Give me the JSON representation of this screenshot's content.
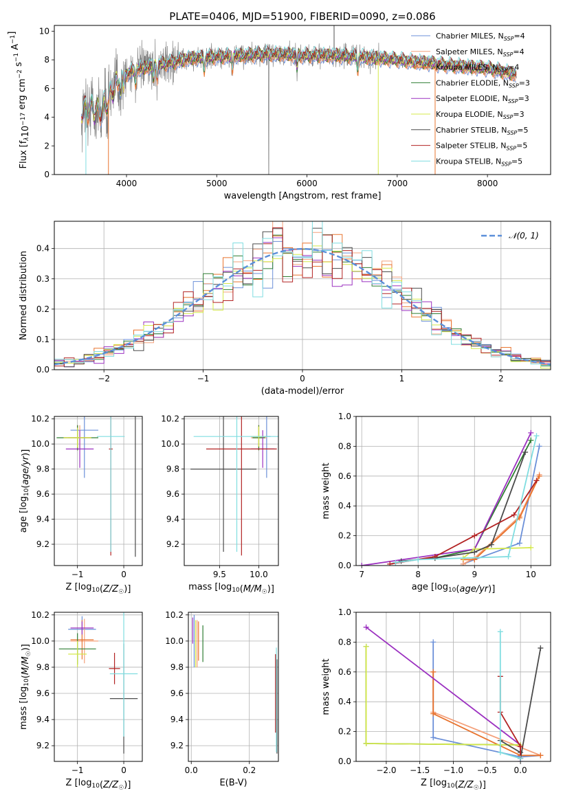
{
  "figure": {
    "title": "PLATE=0406, MJD=51900, FIBERID=0090, z=0.086"
  },
  "palette": {
    "Chabrier MILES": "#6a8fd8",
    "Salpeter MILES": "#f4a07a",
    "Kroupa MILES": "#e8732e",
    "Chabrier ELODIE": "#2e7d32",
    "Salpeter ELODIE": "#9b30c0",
    "Kroupa ELODIE": "#d4e84a",
    "Chabrier STELIB": "#4a4a4a",
    "Salpeter STELIB": "#b22222",
    "Kroupa STELIB": "#7fdde0",
    "data": "#808080",
    "normal_curve": "#5b8fd9"
  },
  "chart_data": [
    {
      "id": "spectrum",
      "type": "line",
      "title": "",
      "xlabel": "wavelength [Angstrom, rest frame]",
      "ylabel": "Flux [f_λ10^-17 erg cm^-2 s^-1 A^-1]",
      "xlim": [
        3200,
        8700
      ],
      "ylim": [
        0,
        10.4
      ],
      "xticks": [
        4000,
        5000,
        6000,
        7000,
        8000
      ],
      "yticks": [
        0,
        2,
        4,
        6,
        8,
        10
      ],
      "grid": false,
      "legend_position": "top-right",
      "legend": [
        {
          "name": "Chabrier MILES",
          "label": "Chabrier MILES, N",
          "sub": "SSP",
          "tail": "=4"
        },
        {
          "name": "Salpeter MILES",
          "label": "Salpeter MILES, N",
          "sub": "SSP",
          "tail": "=4"
        },
        {
          "name": "Kroupa MILES",
          "label": "Kroupa MILES, N",
          "sub": "SSP",
          "tail": "=4"
        },
        {
          "name": "Chabrier ELODIE",
          "label": "Chabrier ELODIE, N",
          "sub": "SSP",
          "tail": "=3"
        },
        {
          "name": "Salpeter ELODIE",
          "label": "Salpeter ELODIE, N",
          "sub": "SSP",
          "tail": "=3"
        },
        {
          "name": "Kroupa ELODIE",
          "label": "Kroupa ELODIE, N",
          "sub": "SSP",
          "tail": "=3"
        },
        {
          "name": "Chabrier STELIB",
          "label": "Chabrier STELIB, N",
          "sub": "SSP",
          "tail": "=5"
        },
        {
          "name": "Salpeter STELIB",
          "label": "Salpeter STELIB, N",
          "sub": "SSP",
          "tail": "=5"
        },
        {
          "name": "Kroupa STELIB",
          "label": "Kroupa STELIB, N",
          "sub": "SSP",
          "tail": "=5"
        }
      ],
      "continuum": {
        "x": [
          3500,
          3600,
          3700,
          3800,
          3850,
          3950,
          4000,
          4100,
          4300,
          4500,
          4700,
          5000,
          5300,
          5600,
          6000,
          6300,
          6600,
          7000,
          7300,
          7600,
          8000,
          8300
        ],
        "y": [
          4.4,
          4.6,
          4.3,
          5.2,
          5.9,
          6.7,
          7.0,
          7.3,
          7.6,
          7.8,
          8.1,
          8.2,
          8.3,
          8.4,
          8.3,
          8.3,
          8.2,
          8.0,
          7.8,
          7.6,
          7.4,
          7.0
        ]
      }
    },
    {
      "id": "residuals",
      "type": "step",
      "title": "",
      "xlabel": "(data-model)/error",
      "ylabel": "Normed distribution",
      "xlim": [
        -2.5,
        2.5
      ],
      "ylim": [
        0,
        0.49
      ],
      "xticks": [
        -2,
        -1,
        0,
        1,
        2
      ],
      "yticks": [
        0.0,
        0.1,
        0.2,
        0.3,
        0.4
      ],
      "grid": true,
      "legend_position": "top-right",
      "legend": [
        {
          "name": "normal",
          "label": "𝒩(0, 1)"
        }
      ],
      "bin_width": 0.1,
      "normal": {
        "mu": 0,
        "sigma": 1
      }
    },
    {
      "id": "age-vs-Z",
      "type": "errorbar",
      "xlabel": "Z [log10(Z/Z☉)]",
      "ylabel": "age  [log10(age/yr)]",
      "xlim": [
        -1.5,
        0.4
      ],
      "ylim": [
        9.03,
        10.22
      ],
      "xticks": [
        -1,
        0
      ],
      "yticks": [
        9.2,
        9.4,
        9.6,
        9.8,
        10.0,
        10.2
      ],
      "grid": true,
      "points": [
        {
          "s": "Chabrier MILES",
          "x": -0.85,
          "xe": 0.3,
          "y": 10.11,
          "ye": 0.38
        },
        {
          "s": "Salpeter MILES",
          "x": -0.95,
          "xe": 0.25,
          "y": 10.05,
          "ye": 0.1
        },
        {
          "s": "Kroupa MILES",
          "x": -1.0,
          "xe": 0.3,
          "y": 10.05,
          "ye": 0.1
        },
        {
          "s": "Chabrier ELODIE",
          "x": -1.0,
          "xe": 0.45,
          "y": 10.05,
          "ye": 0.1
        },
        {
          "s": "Salpeter ELODIE",
          "x": -0.95,
          "xe": 0.3,
          "y": 9.96,
          "ye": 0.15
        },
        {
          "s": "Kroupa ELODIE",
          "x": -1.0,
          "xe": 0.3,
          "y": 10.05,
          "ye": 0.08
        },
        {
          "s": "Chabrier STELIB",
          "x": 0.25,
          "xe": 0.0,
          "y": 9.8,
          "ye": 0.7
        },
        {
          "s": "Salpeter STELIB",
          "x": -0.28,
          "xe": 0.04,
          "y": 9.96,
          "ye": 0.85
        },
        {
          "s": "Kroupa STELIB",
          "x": -0.28,
          "xe": 0.3,
          "y": 10.06,
          "ye": 0.92
        }
      ]
    },
    {
      "id": "age-vs-mass",
      "type": "errorbar",
      "xlabel": "mass [log10(M/M☉)]",
      "ylabel": "",
      "xlim": [
        9.05,
        10.25
      ],
      "ylim": [
        9.03,
        10.22
      ],
      "xticks": [
        9.5,
        10.0
      ],
      "yticks": [
        9.2,
        9.4,
        9.6,
        9.8,
        10.0,
        10.2
      ],
      "grid": true,
      "points": [
        {
          "s": "Chabrier MILES",
          "x": 10.1,
          "xe": 0.05,
          "y": 10.06,
          "ye": 0.33
        },
        {
          "s": "Salpeter MILES",
          "x": 10.0,
          "xe": 0.1,
          "y": 10.05,
          "ye": 0.1
        },
        {
          "s": "Kroupa MILES",
          "x": 10.0,
          "xe": 0.08,
          "y": 10.05,
          "ye": 0.1
        },
        {
          "s": "Chabrier ELODIE",
          "x": 10.0,
          "xe": 0.08,
          "y": 10.05,
          "ye": 0.1
        },
        {
          "s": "Salpeter ELODIE",
          "x": 10.05,
          "xe": 0.15,
          "y": 9.96,
          "ye": 0.15
        },
        {
          "s": "Kroupa ELODIE",
          "x": 10.0,
          "xe": 0.1,
          "y": 10.06,
          "ye": 0.08
        },
        {
          "s": "Chabrier STELIB",
          "x": 9.55,
          "xe": 0.42,
          "y": 9.8,
          "ye": 0.66
        },
        {
          "s": "Salpeter STELIB",
          "x": 9.78,
          "xe": 0.45,
          "y": 9.96,
          "ye": 0.85
        },
        {
          "s": "Kroupa STELIB",
          "x": 9.72,
          "xe": 0.55,
          "y": 10.06,
          "ye": 0.92
        }
      ]
    },
    {
      "id": "massweight-vs-age",
      "type": "line",
      "xlabel": "age  [log10(age/yr)]",
      "ylabel": "mass weight",
      "xlim": [
        6.9,
        10.35
      ],
      "ylim": [
        0,
        1.0
      ],
      "xticks": [
        7,
        8,
        9,
        10
      ],
      "yticks": [
        0.0,
        0.2,
        0.4,
        0.6,
        0.8,
        1.0
      ],
      "grid": true,
      "series": [
        {
          "name": "Chabrier MILES",
          "x": [
            8.8,
            9.0,
            9.8,
            10.15
          ],
          "y": [
            0.01,
            0.04,
            0.15,
            0.8
          ]
        },
        {
          "name": "Salpeter MILES",
          "x": [
            8.8,
            9.0,
            9.8,
            10.15
          ],
          "y": [
            0.01,
            0.05,
            0.33,
            0.61
          ]
        },
        {
          "name": "Kroupa MILES",
          "x": [
            8.8,
            9.0,
            9.8,
            10.15
          ],
          "y": [
            0.04,
            0.04,
            0.32,
            0.6
          ]
        },
        {
          "name": "Chabrier ELODIE",
          "x": [
            8.3,
            9.0,
            10.0
          ],
          "y": [
            0.05,
            0.11,
            0.84
          ]
        },
        {
          "name": "Salpeter ELODIE",
          "x": [
            7.0,
            9.0,
            10.0
          ],
          "y": [
            0.0,
            0.11,
            0.89
          ]
        },
        {
          "name": "Kroupa ELODIE",
          "x": [
            8.8,
            9.0,
            10.0
          ],
          "y": [
            0.05,
            0.11,
            0.12
          ]
        },
        {
          "name": "Chabrier STELIB",
          "x": [
            7.7,
            8.3,
            9.0,
            9.3,
            9.9
          ],
          "y": [
            0.03,
            0.05,
            0.09,
            0.14,
            0.76
          ]
        },
        {
          "name": "Salpeter STELIB",
          "x": [
            7.5,
            8.3,
            9.0,
            9.7,
            10.1
          ],
          "y": [
            0.01,
            0.06,
            0.2,
            0.34,
            0.57
          ]
        },
        {
          "name": "Kroupa STELIB",
          "x": [
            7.6,
            8.0,
            9.6,
            10.1
          ],
          "y": [
            0.02,
            0.04,
            0.06,
            0.87
          ]
        }
      ]
    },
    {
      "id": "mass-vs-Z",
      "type": "errorbar",
      "xlabel": "Z [log10(Z/Z☉)]",
      "ylabel": "mass [log10(M/M☉)]",
      "xlim": [
        -1.5,
        0.4
      ],
      "ylim": [
        9.08,
        10.22
      ],
      "xticks": [
        -1,
        0
      ],
      "yticks": [
        9.2,
        9.4,
        9.6,
        9.8,
        10.0,
        10.2
      ],
      "grid": true,
      "points": [
        {
          "s": "Chabrier MILES",
          "x": -0.9,
          "xe": 0.3,
          "y": 10.09,
          "ye": 0.1
        },
        {
          "s": "Salpeter MILES",
          "x": -0.85,
          "xe": 0.3,
          "y": 10.0,
          "ye": 0.17
        },
        {
          "s": "Kroupa MILES",
          "x": -0.9,
          "xe": 0.25,
          "y": 10.01,
          "ye": 0.15
        },
        {
          "s": "Chabrier ELODIE",
          "x": -1.0,
          "xe": 0.4,
          "y": 9.94,
          "ye": 0.12
        },
        {
          "s": "Salpeter ELODIE",
          "x": -0.9,
          "xe": 0.25,
          "y": 10.1,
          "ye": 0.05
        },
        {
          "s": "Kroupa ELODIE",
          "x": -1.0,
          "xe": 0.2,
          "y": 9.9,
          "ye": 0.1
        },
        {
          "s": "Chabrier STELIB",
          "x": 0.0,
          "xe": 0.3,
          "y": 9.56,
          "ye": 0.42
        },
        {
          "s": "Salpeter STELIB",
          "x": -0.2,
          "xe": 0.12,
          "y": 9.79,
          "ye": 0.12
        },
        {
          "s": "Kroupa STELIB",
          "x": 0.0,
          "xe": 0.3,
          "y": 9.75,
          "ye": 0.48
        }
      ]
    },
    {
      "id": "mass-vs-EBV",
      "type": "errorbar",
      "xlabel": "E(B-V)",
      "ylabel": "",
      "xlim": [
        -0.01,
        0.3
      ],
      "ylim": [
        9.08,
        10.22
      ],
      "xticks": [
        0.0,
        0.2
      ],
      "yticks": [
        9.2,
        9.4,
        9.6,
        9.8,
        10.0,
        10.2
      ],
      "grid": true,
      "points": [
        {
          "s": "Chabrier MILES",
          "x": 0.01,
          "xe": 0.0,
          "y": 10.0,
          "ye": 0.2
        },
        {
          "s": "Salpeter MILES",
          "x": 0.02,
          "xe": 0.0,
          "y": 9.98,
          "ye": 0.18
        },
        {
          "s": "Kroupa MILES",
          "x": 0.025,
          "xe": 0.0,
          "y": 10.0,
          "ye": 0.15
        },
        {
          "s": "Chabrier ELODIE",
          "x": 0.04,
          "xe": 0.0,
          "y": 9.98,
          "ye": 0.14
        },
        {
          "s": "Salpeter ELODIE",
          "x": 0.005,
          "xe": 0.0,
          "y": 10.08,
          "ye": 0.1
        },
        {
          "s": "Kroupa ELODIE",
          "x": 0.015,
          "xe": 0.0,
          "y": 9.98,
          "ye": 0.18
        },
        {
          "s": "Chabrier STELIB",
          "x": 0.295,
          "xe": 0.0,
          "y": 9.5,
          "ye": 0.36
        },
        {
          "s": "Salpeter STELIB",
          "x": 0.29,
          "xe": 0.0,
          "y": 9.6,
          "ye": 0.3
        },
        {
          "s": "Kroupa STELIB",
          "x": 0.293,
          "xe": 0.0,
          "y": 9.55,
          "ye": 0.4
        }
      ]
    },
    {
      "id": "massweight-vs-Z",
      "type": "line",
      "xlabel": "Z [log10(Z/Z☉)]",
      "ylabel": "mass weight",
      "xlim": [
        -2.45,
        0.45
      ],
      "ylim": [
        0,
        1.0
      ],
      "xticks": [
        -2.0,
        -1.5,
        -1.0,
        -0.5,
        0.0
      ],
      "yticks": [
        0.0,
        0.2,
        0.4,
        0.6,
        0.8,
        1.0
      ],
      "grid": true,
      "series": [
        {
          "name": "Chabrier MILES",
          "x": [
            -1.3,
            -1.3,
            0.0,
            0.3
          ],
          "y": [
            0.8,
            0.16,
            0.03,
            0.04
          ]
        },
        {
          "name": "Salpeter MILES",
          "x": [
            -1.3,
            -1.3,
            0.3,
            0.3
          ],
          "y": [
            0.6,
            0.33,
            0.04,
            0.04
          ]
        },
        {
          "name": "Kroupa MILES",
          "x": [
            -1.3,
            -1.3,
            0.0,
            0.3
          ],
          "y": [
            0.6,
            0.32,
            0.04,
            0.04
          ]
        },
        {
          "name": "Chabrier ELODIE",
          "x": [
            -2.3,
            -2.3,
            0.0
          ],
          "y": [
            0.77,
            0.12,
            0.11
          ]
        },
        {
          "name": "Salpeter ELODIE",
          "x": [
            -2.3,
            0.0,
            0.0
          ],
          "y": [
            0.9,
            0.11,
            0.0
          ]
        },
        {
          "name": "Kroupa ELODIE",
          "x": [
            -2.3,
            -2.3,
            0.0
          ],
          "y": [
            0.77,
            0.12,
            0.11
          ]
        },
        {
          "name": "Chabrier STELIB",
          "x": [
            -0.3,
            0.0,
            0.0,
            0.3
          ],
          "y": [
            0.14,
            0.06,
            0.02,
            0.76
          ]
        },
        {
          "name": "Salpeter STELIB",
          "x": [
            -0.3,
            -0.3,
            0.0,
            0.0
          ],
          "y": [
            0.57,
            0.33,
            0.1,
            0.02
          ]
        },
        {
          "name": "Kroupa STELIB",
          "x": [
            -0.3,
            -0.3,
            0.0
          ],
          "y": [
            0.87,
            0.06,
            0.02
          ]
        }
      ]
    }
  ]
}
